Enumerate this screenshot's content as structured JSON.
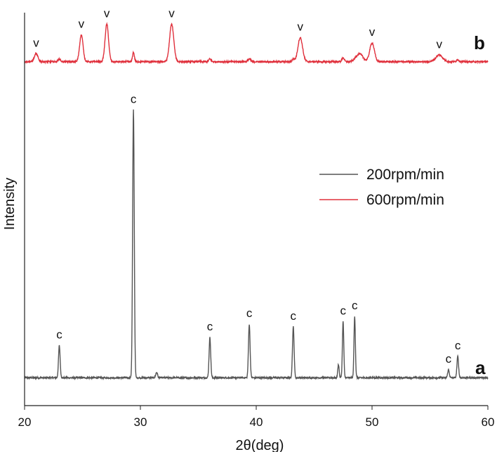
{
  "chart_data": {
    "type": "line",
    "xlabel": "2θ(deg)",
    "ylabel": "Intensity",
    "xlim": [
      20,
      60
    ],
    "xticks": [
      20,
      30,
      40,
      50,
      60
    ],
    "grid": false,
    "legend_position": "right",
    "series": [
      {
        "name": "200rpm/min",
        "trace_label": "a",
        "color": "#555555",
        "baseline": 0.02,
        "peaks": [
          {
            "x": 23.0,
            "h": 0.12,
            "w": 0.07
          },
          {
            "x": 29.4,
            "h": 1.0,
            "w": 0.07
          },
          {
            "x": 31.4,
            "h": 0.02,
            "w": 0.08
          },
          {
            "x": 36.0,
            "h": 0.15,
            "w": 0.07
          },
          {
            "x": 39.4,
            "h": 0.2,
            "w": 0.07
          },
          {
            "x": 43.2,
            "h": 0.19,
            "w": 0.07
          },
          {
            "x": 47.1,
            "h": 0.05,
            "w": 0.06
          },
          {
            "x": 47.5,
            "h": 0.21,
            "w": 0.06
          },
          {
            "x": 48.5,
            "h": 0.23,
            "w": 0.06
          },
          {
            "x": 56.6,
            "h": 0.03,
            "w": 0.07
          },
          {
            "x": 57.4,
            "h": 0.08,
            "w": 0.07
          }
        ],
        "markers": [
          {
            "x": 23.0,
            "text": "c"
          },
          {
            "x": 29.4,
            "text": "c"
          },
          {
            "x": 36.0,
            "text": "c"
          },
          {
            "x": 39.4,
            "text": "c"
          },
          {
            "x": 43.2,
            "text": "c"
          },
          {
            "x": 47.5,
            "text": "c"
          },
          {
            "x": 48.5,
            "text": "c"
          },
          {
            "x": 56.6,
            "text": "c"
          },
          {
            "x": 57.4,
            "text": "c"
          }
        ]
      },
      {
        "name": "600rpm/min",
        "trace_label": "b",
        "color": "#e0303c",
        "baseline": 1.2,
        "peaks": [
          {
            "x": 21.0,
            "h": 0.03,
            "w": 0.15
          },
          {
            "x": 23.0,
            "h": 0.01,
            "w": 0.1
          },
          {
            "x": 24.9,
            "h": 0.1,
            "w": 0.15
          },
          {
            "x": 27.1,
            "h": 0.14,
            "w": 0.15
          },
          {
            "x": 29.4,
            "h": 0.035,
            "w": 0.08
          },
          {
            "x": 32.7,
            "h": 0.14,
            "w": 0.18
          },
          {
            "x": 36.0,
            "h": 0.01,
            "w": 0.1
          },
          {
            "x": 39.4,
            "h": 0.01,
            "w": 0.12
          },
          {
            "x": 43.2,
            "h": 0.01,
            "w": 0.1
          },
          {
            "x": 43.8,
            "h": 0.09,
            "w": 0.2
          },
          {
            "x": 47.5,
            "h": 0.015,
            "w": 0.1
          },
          {
            "x": 48.9,
            "h": 0.03,
            "w": 0.3
          },
          {
            "x": 50.0,
            "h": 0.07,
            "w": 0.2
          },
          {
            "x": 55.8,
            "h": 0.025,
            "w": 0.3
          },
          {
            "x": 57.4,
            "h": 0.008,
            "w": 0.1
          }
        ],
        "markers": [
          {
            "x": 21.0,
            "text": "v"
          },
          {
            "x": 24.9,
            "text": "v"
          },
          {
            "x": 27.1,
            "text": "v"
          },
          {
            "x": 32.7,
            "text": "v"
          },
          {
            "x": 43.8,
            "text": "v"
          },
          {
            "x": 50.0,
            "text": "v"
          },
          {
            "x": 55.8,
            "text": "v"
          }
        ]
      }
    ]
  }
}
